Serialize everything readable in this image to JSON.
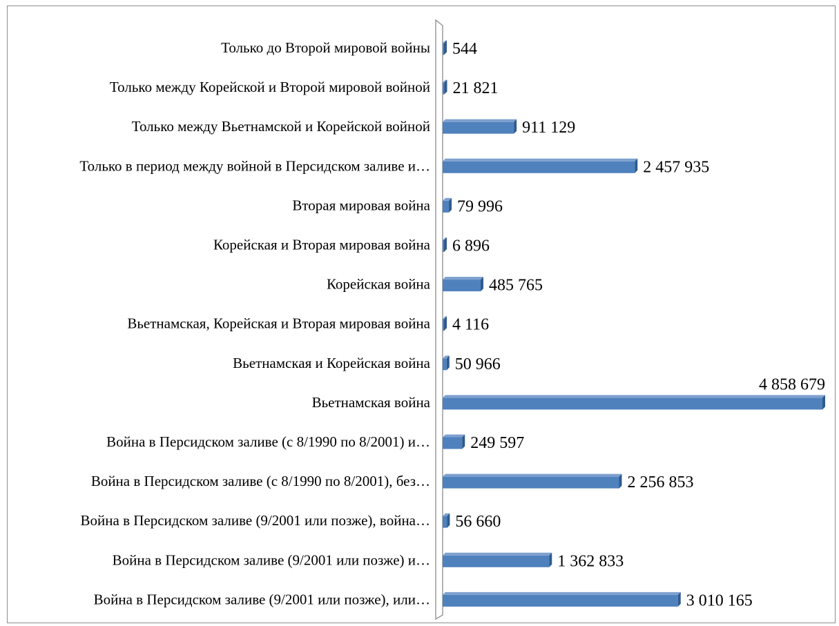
{
  "chart_data": {
    "type": "bar",
    "orientation": "horizontal",
    "style": "3d",
    "bar_color": "#4f81bd",
    "categories": [
      "Только до Второй мировой войны",
      "Только между Корейской и Второй мировой войной",
      "Только между Вьетнамской и Корейской войной",
      "Только в период между войной в Персидском заливе и…",
      "Вторая мировая война",
      "Корейская и Вторая мировая война",
      "Корейская война",
      "Вьетнамская, Корейская и Вторая мировая война",
      "Вьетнамская и Корейская война",
      "Вьетнамская война",
      "Война в Персидском заливе (с 8/1990 по 8/2001) и…",
      "Война в Персидском заливе (с 8/1990 по 8/2001), без…",
      "Война в Персидском заливе (9/2001 или позже), война…",
      "Война в Персидском заливе (9/2001 или позже) и…",
      "Война в Персидском заливе (9/2001 или позже), или…"
    ],
    "values": [
      544,
      21821,
      911129,
      2457935,
      79996,
      6896,
      485765,
      4116,
      50966,
      4858679,
      249597,
      2256853,
      56660,
      1362833,
      3010165
    ],
    "value_labels": [
      "544",
      "21 821",
      "911 129",
      "2 457 935",
      "79 996",
      "6 896",
      "485 765",
      "4 116",
      "50 966",
      "4 858 679",
      "249 597",
      "2 256 853",
      "56 660",
      "1 362 833",
      "3 010 165"
    ],
    "xlim": [
      0,
      4858679
    ],
    "grid": false,
    "legend": "none"
  }
}
